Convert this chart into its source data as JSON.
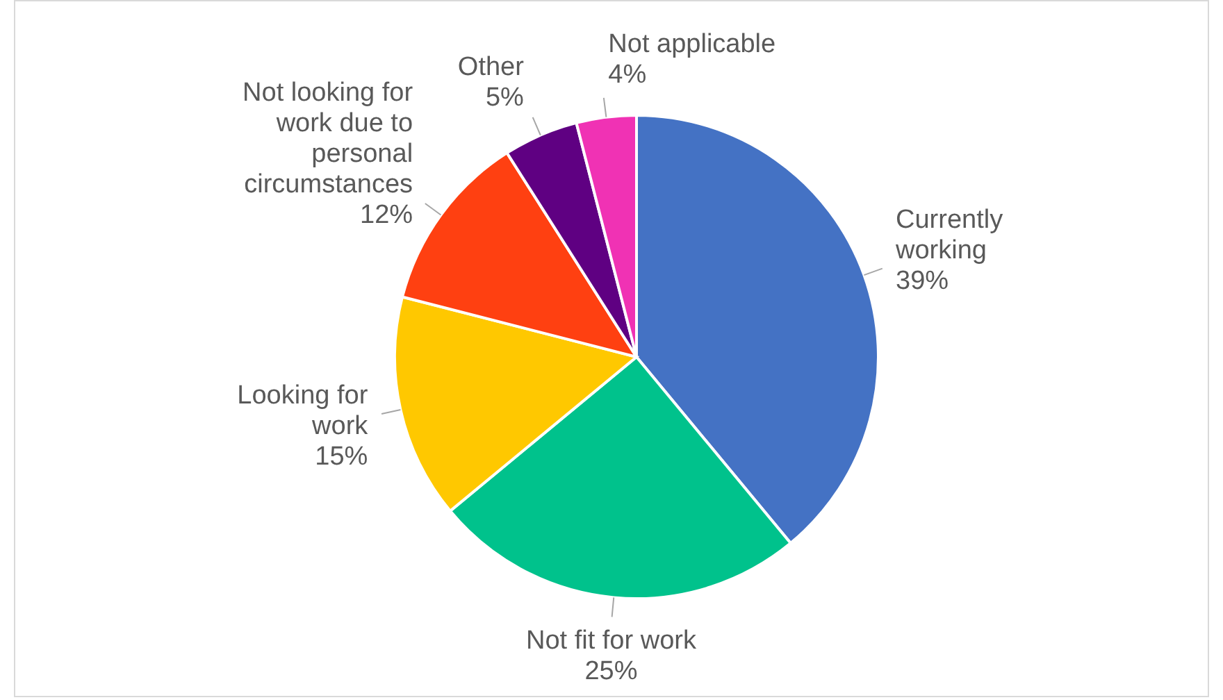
{
  "chart_data": {
    "type": "pie",
    "categories": [
      "Currently working",
      "Not fit for work",
      "Looking for work",
      "Not looking for work due to personal circumstances",
      "Other",
      "Not applicable"
    ],
    "values": [
      39,
      25,
      15,
      12,
      5,
      4
    ],
    "value_labels": [
      "39%",
      "25%",
      "15%",
      "12%",
      "5%",
      "4%"
    ],
    "colors": [
      "#4472c4",
      "#00c28c",
      "#ffc800",
      "#ff4011",
      "#5f0082",
      "#f032b4"
    ],
    "legend": false
  }
}
